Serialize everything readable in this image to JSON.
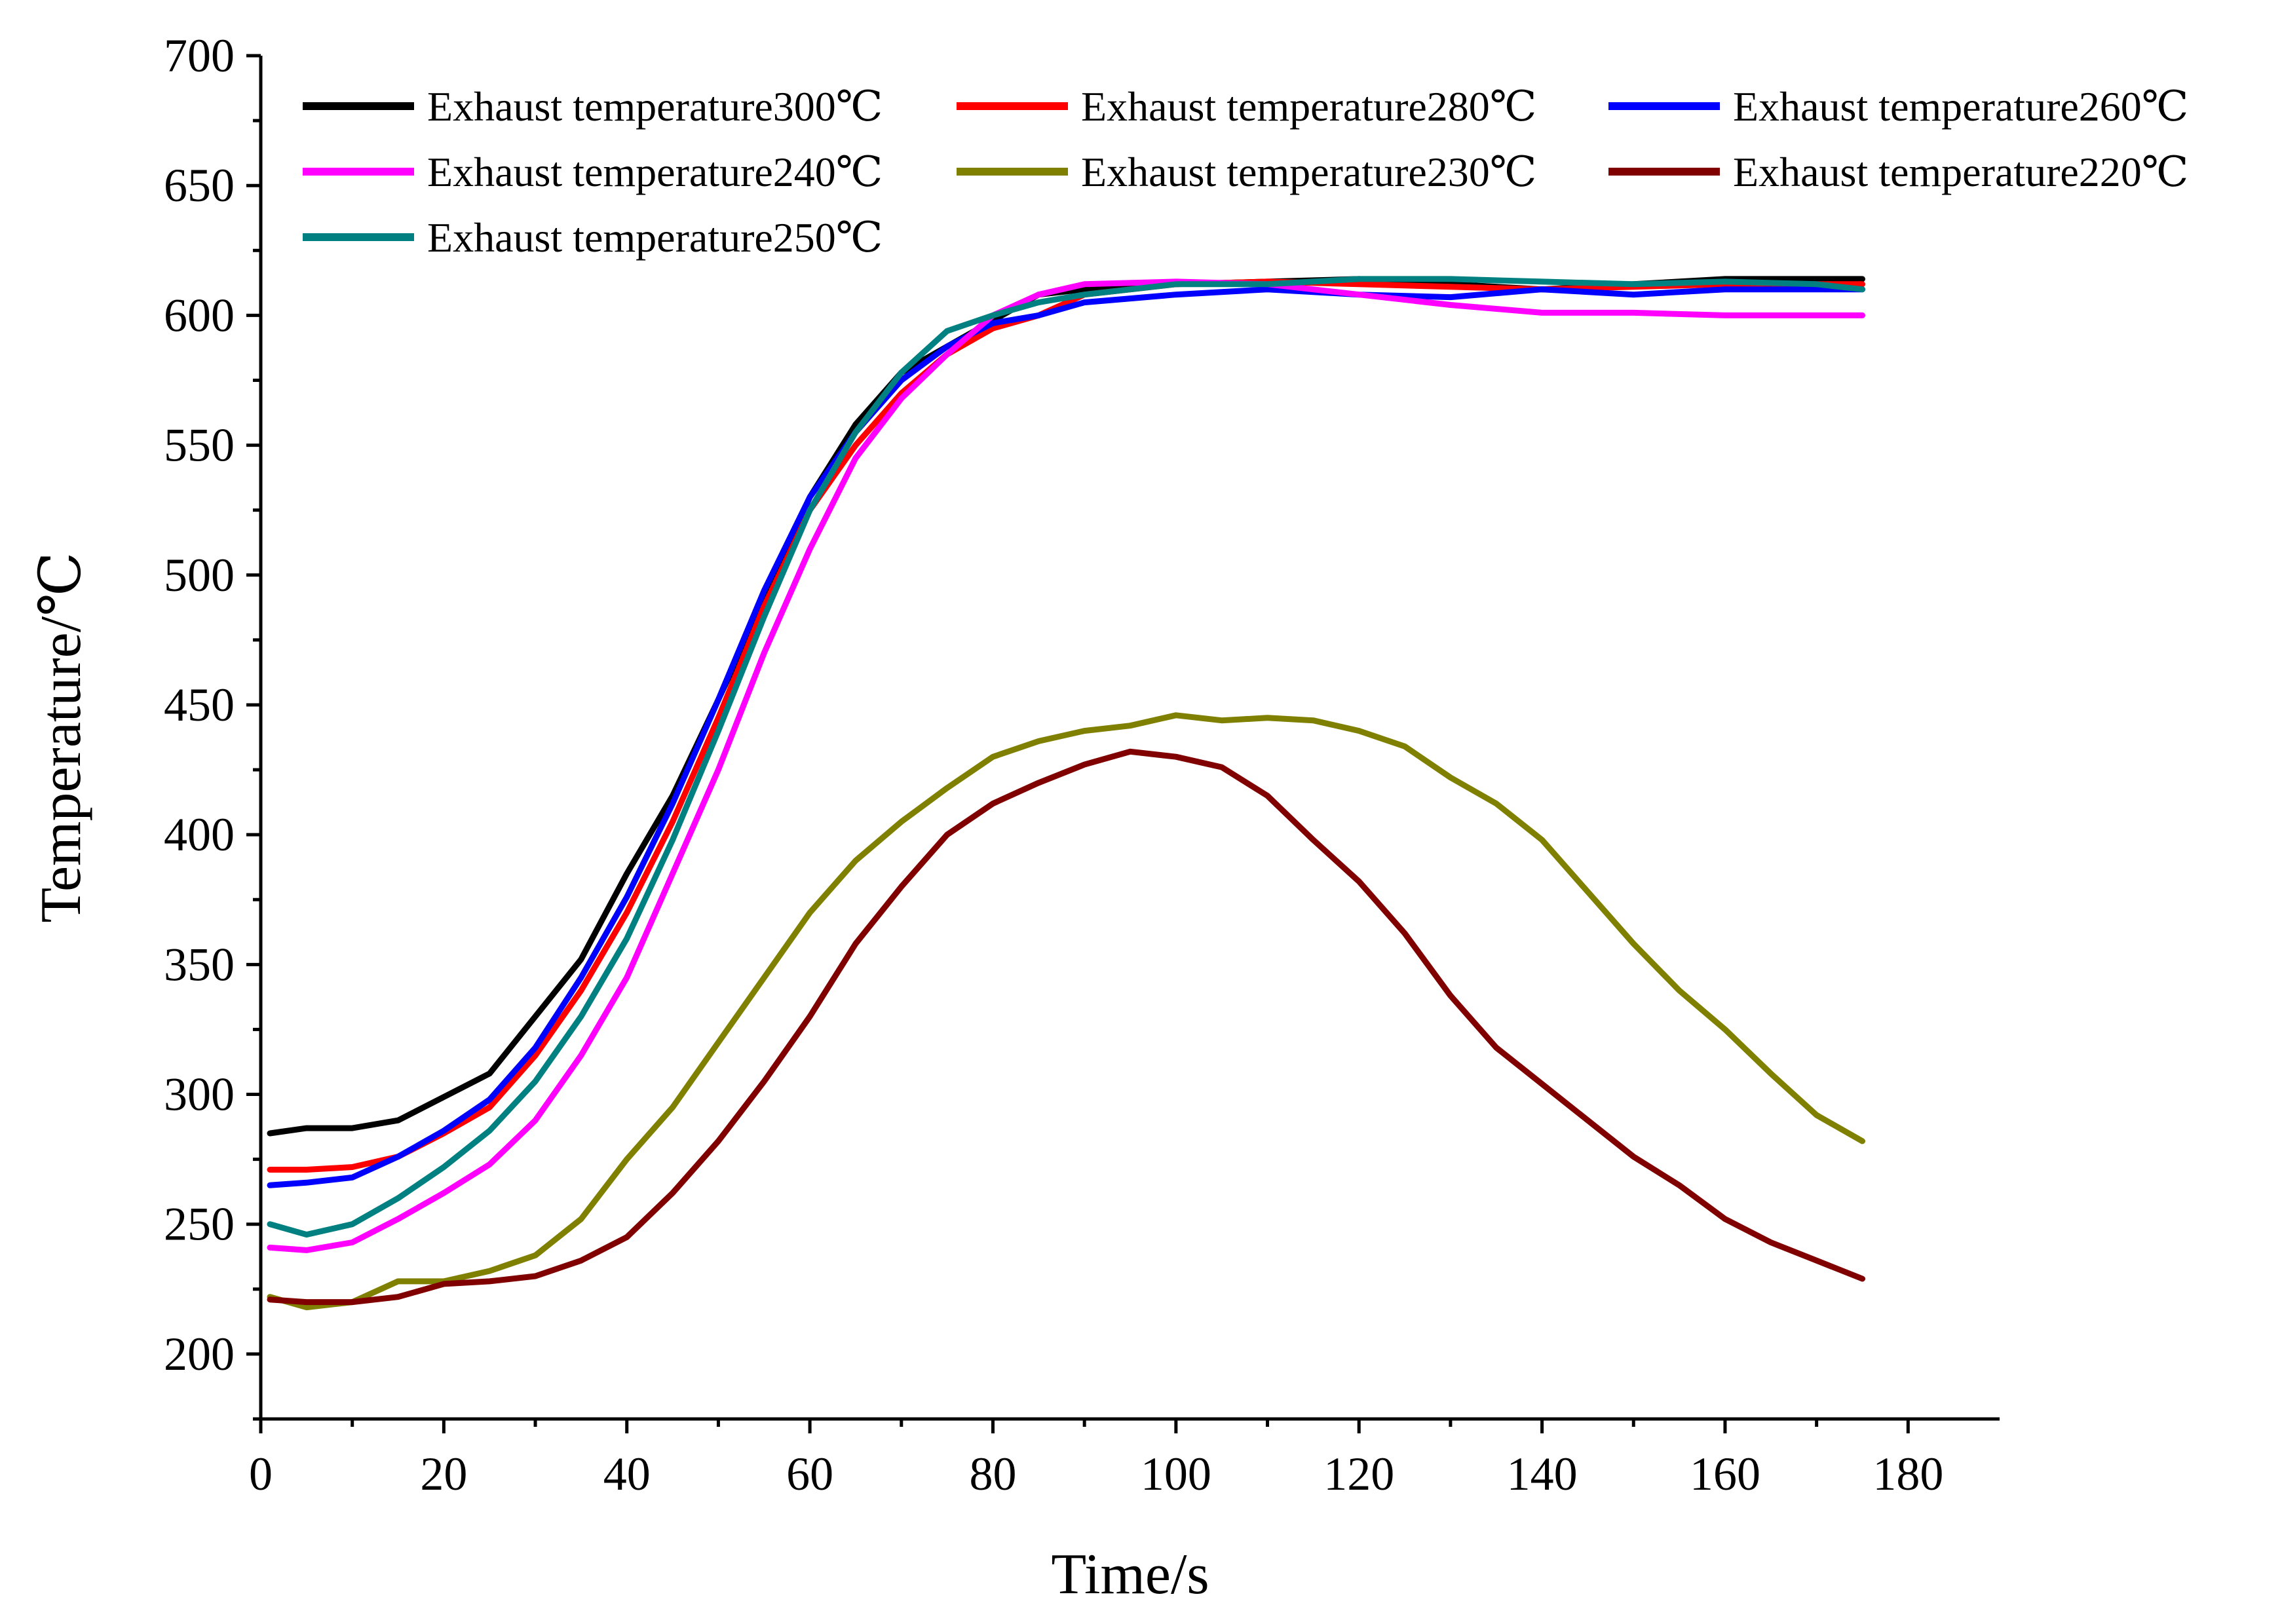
{
  "chart_data": {
    "type": "line",
    "xlabel": "Time/s",
    "ylabel": "Temperature/℃",
    "xlim": [
      0,
      190
    ],
    "ylim": [
      175,
      700
    ],
    "xticks": [
      0,
      20,
      40,
      60,
      80,
      100,
      120,
      140,
      160,
      180
    ],
    "yticks": [
      200,
      250,
      300,
      350,
      400,
      450,
      500,
      550,
      600,
      650,
      700
    ],
    "grid": false,
    "legend_position": "top",
    "series": [
      {
        "name": "Exhaust temperature300℃",
        "color": "#000000",
        "x": [
          1,
          5,
          10,
          15,
          20,
          25,
          30,
          35,
          40,
          45,
          50,
          55,
          60,
          65,
          70,
          75,
          80,
          85,
          90,
          100,
          110,
          120,
          130,
          140,
          150,
          160,
          170,
          175
        ],
        "y": [
          285,
          287,
          287,
          290,
          299,
          308,
          330,
          352,
          385,
          415,
          452,
          490,
          530,
          558,
          578,
          588,
          598,
          608,
          610,
          612,
          613,
          614,
          612,
          610,
          612,
          614,
          614,
          614
        ]
      },
      {
        "name": "Exhaust temperature280℃",
        "color": "#ff0000",
        "x": [
          1,
          5,
          10,
          15,
          20,
          25,
          30,
          35,
          40,
          45,
          50,
          55,
          60,
          65,
          70,
          75,
          80,
          85,
          90,
          100,
          110,
          120,
          130,
          140,
          150,
          160,
          170,
          175
        ],
        "y": [
          271,
          271,
          272,
          276,
          285,
          295,
          315,
          340,
          370,
          405,
          445,
          488,
          525,
          550,
          570,
          585,
          595,
          600,
          608,
          612,
          613,
          612,
          611,
          610,
          611,
          612,
          612,
          612
        ]
      },
      {
        "name": "Exhaust temperature260℃",
        "color": "#0000ff",
        "x": [
          1,
          5,
          10,
          15,
          20,
          25,
          30,
          35,
          40,
          45,
          50,
          55,
          60,
          65,
          70,
          75,
          80,
          85,
          90,
          100,
          110,
          120,
          130,
          140,
          150,
          160,
          170,
          175
        ],
        "y": [
          265,
          266,
          268,
          276,
          286,
          298,
          318,
          345,
          376,
          412,
          452,
          494,
          530,
          555,
          575,
          588,
          597,
          600,
          605,
          608,
          610,
          608,
          607,
          610,
          608,
          610,
          610,
          610
        ]
      },
      {
        "name": "Exhaust temperature240℃",
        "color": "#ff00ff",
        "x": [
          1,
          5,
          10,
          15,
          20,
          25,
          30,
          35,
          40,
          45,
          50,
          55,
          60,
          65,
          70,
          75,
          80,
          85,
          90,
          100,
          110,
          120,
          130,
          140,
          150,
          160,
          170,
          175
        ],
        "y": [
          241,
          240,
          243,
          252,
          262,
          273,
          290,
          315,
          345,
          385,
          425,
          470,
          510,
          545,
          568,
          585,
          600,
          608,
          612,
          613,
          612,
          608,
          604,
          601,
          601,
          600,
          600,
          600
        ]
      },
      {
        "name": "Exhaust temperature230℃",
        "color": "#808000",
        "x": [
          1,
          5,
          10,
          15,
          20,
          25,
          30,
          35,
          40,
          45,
          50,
          55,
          60,
          65,
          70,
          75,
          80,
          85,
          90,
          95,
          100,
          105,
          110,
          115,
          120,
          125,
          130,
          135,
          140,
          145,
          150,
          155,
          160,
          165,
          170,
          175
        ],
        "y": [
          222,
          218,
          220,
          228,
          228,
          232,
          238,
          252,
          275,
          295,
          320,
          345,
          370,
          390,
          405,
          418,
          430,
          436,
          440,
          442,
          446,
          444,
          445,
          444,
          440,
          434,
          422,
          412,
          398,
          378,
          358,
          340,
          325,
          308,
          292,
          282
        ]
      },
      {
        "name": "Exhaust temperature220℃",
        "color": "#800000",
        "x": [
          1,
          5,
          10,
          15,
          20,
          25,
          30,
          35,
          40,
          45,
          50,
          55,
          60,
          65,
          70,
          75,
          80,
          85,
          90,
          95,
          100,
          105,
          110,
          115,
          120,
          125,
          130,
          135,
          140,
          145,
          150,
          155,
          160,
          165,
          170,
          175
        ],
        "y": [
          221,
          220,
          220,
          222,
          227,
          228,
          230,
          236,
          245,
          262,
          282,
          305,
          330,
          358,
          380,
          400,
          412,
          420,
          427,
          432,
          430,
          426,
          415,
          398,
          382,
          362,
          338,
          318,
          304,
          290,
          276,
          265,
          252,
          243,
          236,
          229
        ]
      },
      {
        "name": "Exhaust temperature250℃",
        "color": "#008080",
        "x": [
          1,
          5,
          10,
          15,
          20,
          25,
          30,
          35,
          40,
          45,
          50,
          55,
          60,
          65,
          70,
          75,
          80,
          85,
          90,
          100,
          110,
          120,
          130,
          140,
          150,
          160,
          170,
          175
        ],
        "y": [
          250,
          246,
          250,
          260,
          272,
          286,
          305,
          330,
          360,
          398,
          440,
          484,
          525,
          555,
          578,
          594,
          600,
          605,
          608,
          612,
          612,
          614,
          614,
          613,
          612,
          613,
          612,
          610
        ]
      }
    ]
  }
}
